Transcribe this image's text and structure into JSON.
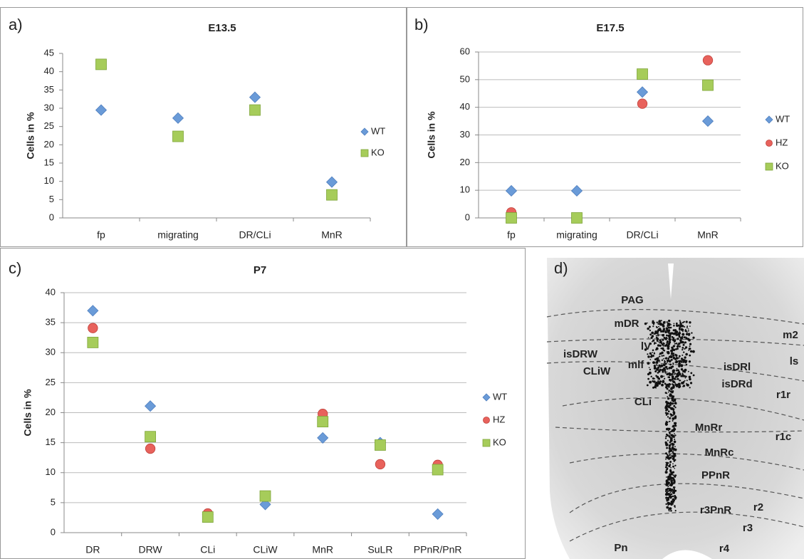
{
  "chart_data": [
    {
      "type": "scatter",
      "panel": "a)",
      "title": "E13.5",
      "ylabel": "Cells in %",
      "categories": [
        "fp",
        "migrating",
        "DR/CLi",
        "MnR"
      ],
      "series": [
        {
          "name": "WT",
          "color": "#6a9bd8",
          "marker": "diamond",
          "values": [
            29.5,
            27.3,
            33,
            9.8
          ]
        },
        {
          "name": "KO",
          "color": "#a6cc5a",
          "marker": "square",
          "values": [
            42,
            22.3,
            29.5,
            6.3
          ]
        }
      ],
      "ylim": [
        0,
        45
      ],
      "yticks": [
        0,
        5,
        10,
        15,
        20,
        25,
        30,
        35,
        40,
        45
      ],
      "grid": false,
      "legend": "right"
    },
    {
      "type": "scatter",
      "panel": "b)",
      "title": "E17.5",
      "ylabel": "Cells in %",
      "categories": [
        "fp",
        "migrating",
        "DR/CLi",
        "MnR"
      ],
      "series": [
        {
          "name": "WT",
          "color": "#6a9bd8",
          "marker": "diamond",
          "values": [
            9.8,
            9.8,
            45.5,
            35
          ]
        },
        {
          "name": "HZ",
          "color": "#e8625c",
          "marker": "circle",
          "values": [
            2,
            0,
            41.3,
            57
          ]
        },
        {
          "name": "KO",
          "color": "#a6cc5a",
          "marker": "square",
          "values": [
            0,
            0,
            52,
            48
          ]
        }
      ],
      "ylim": [
        0,
        60
      ],
      "yticks": [
        0,
        10,
        20,
        30,
        40,
        50,
        60
      ],
      "grid": true,
      "legend": "right"
    },
    {
      "type": "scatter",
      "panel": "c)",
      "title": "P7",
      "ylabel": "Cells in %",
      "categories": [
        "DR",
        "DRW",
        "CLi",
        "CLiW",
        "MnR",
        "SuLR",
        "PPnR/PnR"
      ],
      "series": [
        {
          "name": "WT",
          "color": "#6a9bd8",
          "marker": "diamond",
          "values": [
            37,
            21.1,
            3,
            4.7,
            15.8,
            15,
            3.1
          ]
        },
        {
          "name": "HZ",
          "color": "#e8625c",
          "marker": "circle",
          "values": [
            34.1,
            14,
            3.2,
            6,
            19.8,
            11.4,
            11.3
          ]
        },
        {
          "name": "KO",
          "color": "#a6cc5a",
          "marker": "square",
          "values": [
            31.7,
            16,
            2.6,
            6.1,
            18.5,
            14.6,
            10.5
          ]
        }
      ],
      "ylim": [
        0,
        40
      ],
      "yticks": [
        0,
        5,
        10,
        15,
        20,
        25,
        30,
        35,
        40
      ],
      "grid": true,
      "legend": "right"
    }
  ],
  "image_panel": {
    "panel": "d)",
    "labels": [
      "PAG",
      "mDR",
      "m2",
      "isDRW",
      "lV",
      "mlf",
      "isDRl",
      "ls",
      "CLiW",
      "isDRd",
      "r1r",
      "CLi",
      "MnRr",
      "r1c",
      "MnRc",
      "PPnR",
      "r2",
      "r3PnR",
      "r3",
      "Pn",
      "r4"
    ]
  }
}
